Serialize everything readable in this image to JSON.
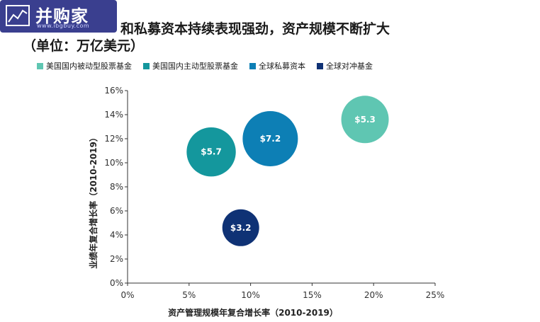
{
  "header": {
    "logo_text": "并购家",
    "logo_sub": "www.ibgbuy.com",
    "title_line1": "和私募资本持续表现强劲，资产规模不断扩大",
    "title_line2": "（单位：万亿美元）"
  },
  "colors": {
    "passive": "#5fc6b2",
    "active": "#14979d",
    "private": "#0d7fb5",
    "hedge": "#0f3275"
  },
  "chart_data": {
    "type": "scatter",
    "subtype": "bubble",
    "xlabel": "资产管理规模年复合增长率（2010-2019）",
    "ylabel": "业绩年复合增长率（2010-2019）",
    "xlim": [
      0,
      25
    ],
    "ylim": [
      0,
      16
    ],
    "x_ticks": [
      "0%",
      "5%",
      "10%",
      "15%",
      "20%",
      "25%"
    ],
    "y_ticks": [
      "0%",
      "2%",
      "4%",
      "6%",
      "8%",
      "10%",
      "12%",
      "14%",
      "16%"
    ],
    "grid": false,
    "legend_position": "top",
    "series": [
      {
        "name": "美国国内被动型股票基金",
        "x": 19.3,
        "y": 13.6,
        "size": 5.3,
        "label": "$5.3",
        "color": "#5fc6b2"
      },
      {
        "name": "美国国内主动型股票基金",
        "x": 6.8,
        "y": 10.9,
        "size": 5.7,
        "label": "$5.7",
        "color": "#14979d"
      },
      {
        "name": "全球私募资本",
        "x": 11.6,
        "y": 12.0,
        "size": 7.2,
        "label": "$7.2",
        "color": "#0d7fb5"
      },
      {
        "name": "全球对冲基金",
        "x": 9.2,
        "y": 4.6,
        "size": 3.2,
        "label": "$3.2",
        "color": "#0f3275"
      }
    ]
  }
}
